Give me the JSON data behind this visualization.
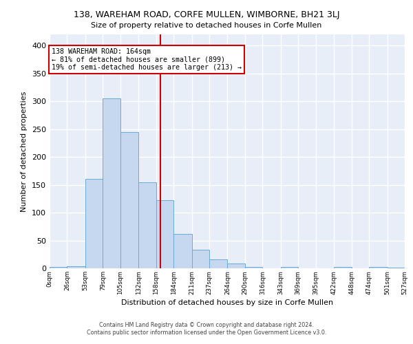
{
  "title": "138, WAREHAM ROAD, CORFE MULLEN, WIMBORNE, BH21 3LJ",
  "subtitle": "Size of property relative to detached houses in Corfe Mullen",
  "xlabel": "Distribution of detached houses by size in Corfe Mullen",
  "ylabel": "Number of detached properties",
  "footnote1": "Contains HM Land Registry data © Crown copyright and database right 2024.",
  "footnote2": "Contains public sector information licensed under the Open Government Licence v3.0.",
  "bin_edges": [
    0,
    26,
    53,
    79,
    105,
    132,
    158,
    184,
    211,
    237,
    264,
    290,
    316,
    343,
    369,
    395,
    422,
    448,
    474,
    501,
    527
  ],
  "counts": [
    2,
    4,
    160,
    305,
    244,
    155,
    122,
    62,
    33,
    16,
    9,
    3,
    0,
    3,
    0,
    0,
    2,
    0,
    2,
    1
  ],
  "bar_color": "#c5d8f0",
  "bar_edge_color": "#6aaad4",
  "property_size": 164,
  "vline_color": "#cc0000",
  "annotation_text": "138 WAREHAM ROAD: 164sqm\n← 81% of detached houses are smaller (899)\n19% of semi-detached houses are larger (213) →",
  "annotation_box_color": "#ffffff",
  "annotation_box_edge": "#cc0000",
  "ylim": [
    0,
    420
  ],
  "background_color": "#e8eef8",
  "grid_color": "#ffffff",
  "tick_labels": [
    "0sqm",
    "26sqm",
    "53sqm",
    "79sqm",
    "105sqm",
    "132sqm",
    "158sqm",
    "184sqm",
    "211sqm",
    "237sqm",
    "264sqm",
    "290sqm",
    "316sqm",
    "343sqm",
    "369sqm",
    "395sqm",
    "422sqm",
    "448sqm",
    "474sqm",
    "501sqm",
    "527sqm"
  ]
}
